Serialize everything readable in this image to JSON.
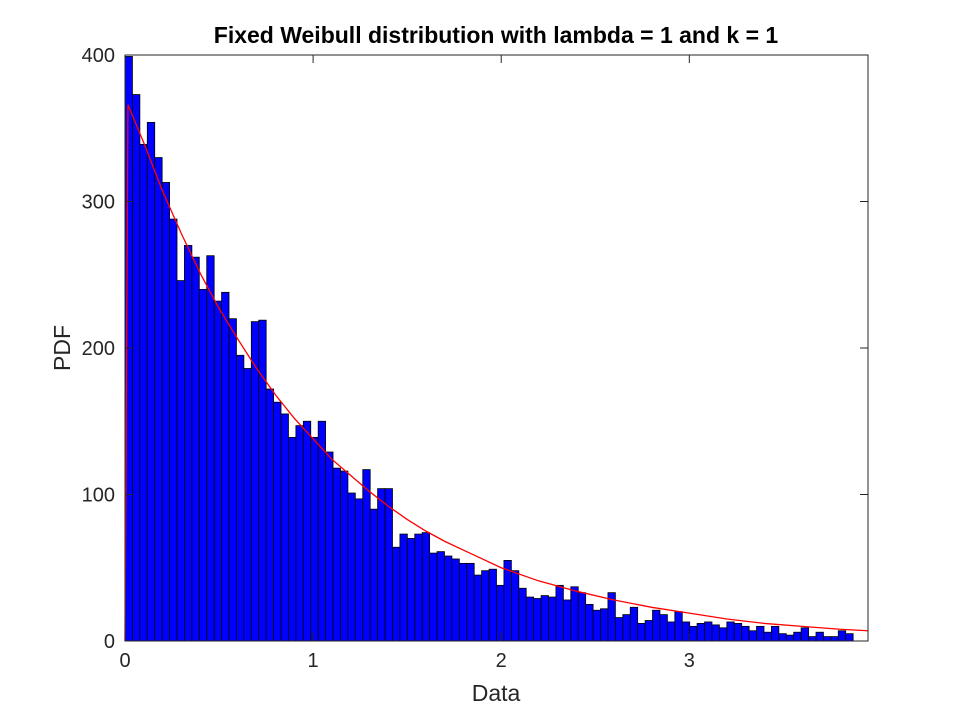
{
  "chart_data": {
    "type": "bar",
    "title": "Fixed Weibull distribution with lambda = 1 and k = 1",
    "xlabel": "Data",
    "ylabel": "PDF",
    "xlim": [
      0,
      3.95
    ],
    "ylim": [
      0,
      400
    ],
    "xticks": [
      0,
      1,
      2,
      3
    ],
    "xtick_labels": [
      "0",
      "1",
      "2",
      "3"
    ],
    "yticks": [
      0,
      100,
      200,
      300,
      400
    ],
    "ytick_labels": [
      "0",
      "100",
      "200",
      "300",
      "400"
    ],
    "grid": false,
    "bin_start": 0,
    "bin_width": 0.0395,
    "bar_color": "#0000ff",
    "bar_edge_color": "#000000",
    "curve_color": "#ff0000",
    "counts": [
      399,
      373,
      339,
      354,
      330,
      313,
      288,
      246,
      270,
      262,
      240,
      263,
      232,
      238,
      220,
      195,
      186,
      218,
      219,
      172,
      163,
      155,
      139,
      147,
      150,
      139,
      150,
      129,
      118,
      116,
      101,
      97,
      117,
      90,
      104,
      104,
      64,
      73,
      70,
      73,
      74,
      60,
      61,
      58,
      56,
      53,
      53,
      45,
      48,
      49,
      38,
      55,
      48,
      36,
      30,
      29,
      31,
      30,
      38,
      28,
      37,
      33,
      25,
      21,
      22,
      33,
      16,
      18,
      23,
      12,
      14,
      21,
      18,
      13,
      20,
      13,
      10,
      12,
      13,
      11,
      9,
      13,
      12,
      10,
      7,
      10,
      6,
      10,
      5,
      4,
      6,
      9,
      3,
      6,
      3,
      3,
      7,
      5
    ],
    "curve": {
      "x": [
        0,
        0.0158,
        0.1,
        0.2,
        0.3,
        0.4,
        0.5,
        0.6,
        0.7,
        0.8,
        0.9,
        1.0,
        1.1,
        1.2,
        1.3,
        1.4,
        1.5,
        1.6,
        1.7,
        1.8,
        1.9,
        2.0,
        2.2,
        2.4,
        2.6,
        2.8,
        3.0,
        3.2,
        3.4,
        3.6,
        3.8,
        3.95
      ],
      "y": [
        0,
        366,
        340,
        307,
        278,
        251,
        227,
        206,
        186,
        168,
        152,
        138,
        124,
        113,
        102,
        92,
        83,
        75,
        68,
        62,
        56,
        50,
        41,
        34,
        28,
        23,
        19,
        15,
        12,
        10,
        8,
        7
      ]
    }
  }
}
